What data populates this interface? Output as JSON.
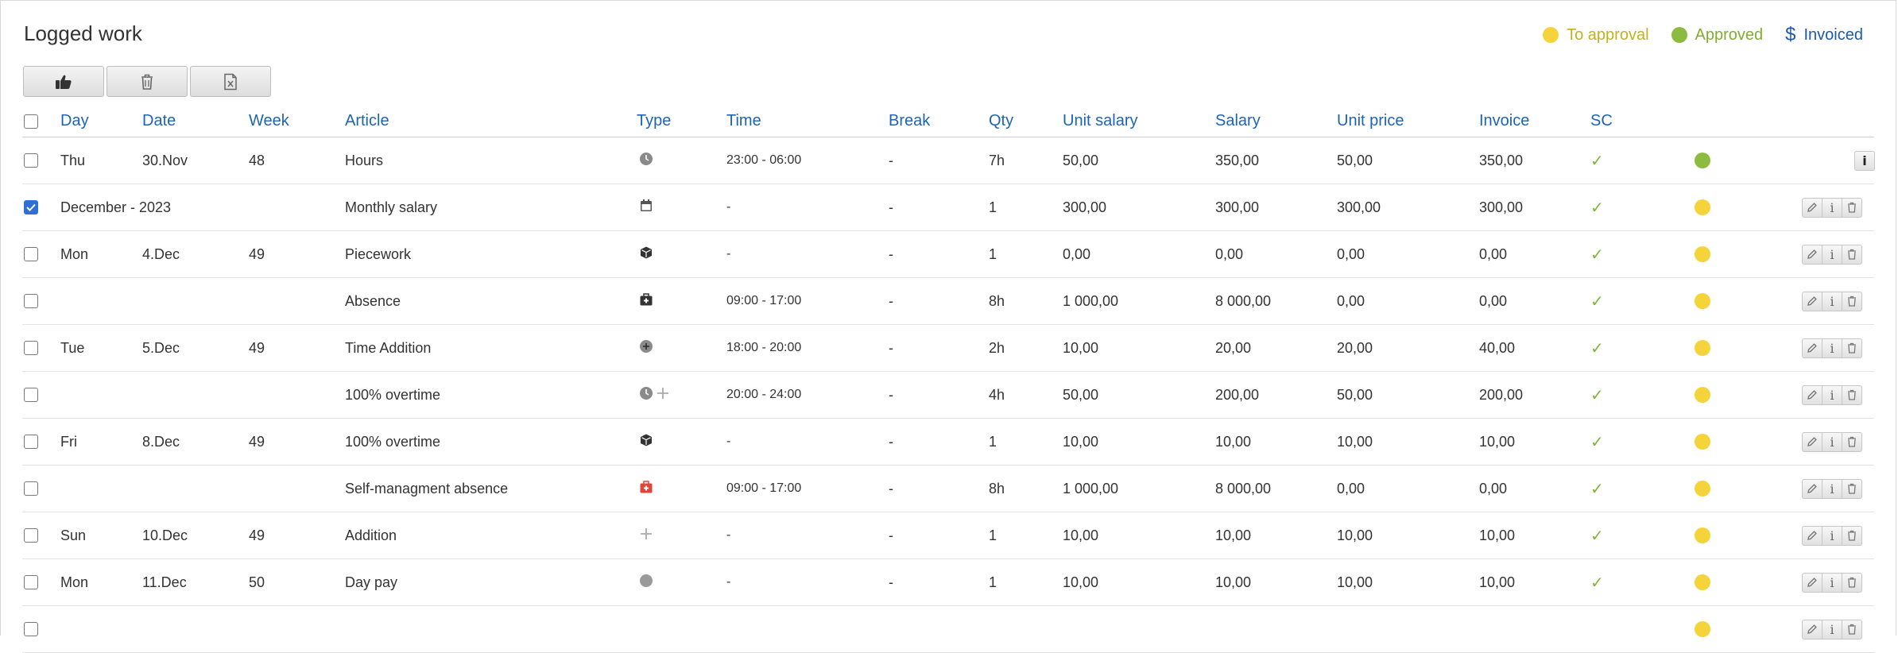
{
  "page": {
    "title": "Logged work"
  },
  "legend": [
    {
      "label": "To approval",
      "kind": "dot",
      "color": "#f5d33b",
      "text_color": "#c4b020"
    },
    {
      "label": "Approved",
      "kind": "dot",
      "color": "#8dbb3f",
      "text_color": "#7fae33"
    },
    {
      "label": "Invoiced",
      "kind": "dollar",
      "color": "#1e5aa8",
      "text_color": "#1e5aa8"
    }
  ],
  "toolbar": {
    "approve_icon": "thumbs-up-icon",
    "delete_icon": "trash-icon",
    "export_icon": "excel-file-icon"
  },
  "columns": {
    "day": "Day",
    "date": "Date",
    "week": "Week",
    "article": "Article",
    "type": "Type",
    "time": "Time",
    "break": "Break",
    "qty": "Qty",
    "unit_salary": "Unit salary",
    "salary": "Salary",
    "unit_price": "Unit price",
    "invoice": "Invoice",
    "sc": "SC"
  },
  "colors": {
    "to_approval": "#f5d33b",
    "approved": "#8dbb3f",
    "check": "#7fb539",
    "link": "#1e64b4"
  },
  "rows": [
    {
      "checked": false,
      "day": "Thu",
      "date": "30.Nov",
      "week": "48",
      "article": "Hours",
      "type_icon": "clock-icon",
      "time": "23:00 - 06:00",
      "break": "-",
      "qty": "7h",
      "unit_salary": "50,00",
      "salary": "350,00",
      "unit_price": "50,00",
      "invoice": "350,00",
      "sc": "✓",
      "status": "approved",
      "actions": "info"
    },
    {
      "checked": true,
      "day": "December - 2023",
      "date": "",
      "week": "",
      "article": "Monthly salary",
      "type_icon": "calendar-icon",
      "time": "-",
      "break": "-",
      "qty": "1",
      "unit_salary": "300,00",
      "salary": "300,00",
      "unit_price": "300,00",
      "invoice": "300,00",
      "sc": "✓",
      "status": "to_approval",
      "actions": "full"
    },
    {
      "checked": false,
      "day": "Mon",
      "date": "4.Dec",
      "week": "49",
      "article": "Piecework",
      "type_icon": "cube-icon",
      "time": "-",
      "break": "-",
      "qty": "1",
      "unit_salary": "0,00",
      "salary": "0,00",
      "unit_price": "0,00",
      "invoice": "0,00",
      "sc": "✓",
      "status": "to_approval",
      "actions": "full"
    },
    {
      "checked": false,
      "day": "",
      "date": "",
      "week": "",
      "article": "Absence",
      "type_icon": "medkit-icon",
      "time": "09:00 - 17:00",
      "break": "-",
      "qty": "8h",
      "unit_salary": "1 000,00",
      "salary": "8 000,00",
      "unit_price": "0,00",
      "invoice": "0,00",
      "sc": "✓",
      "status": "to_approval",
      "actions": "full"
    },
    {
      "checked": false,
      "day": "Tue",
      "date": "5.Dec",
      "week": "49",
      "article": "Time Addition",
      "type_icon": "plus-circle-icon",
      "time": "18:00 - 20:00",
      "break": "-",
      "qty": "2h",
      "unit_salary": "10,00",
      "salary": "20,00",
      "unit_price": "20,00",
      "invoice": "40,00",
      "sc": "✓",
      "status": "to_approval",
      "actions": "full"
    },
    {
      "checked": false,
      "day": "",
      "date": "",
      "week": "",
      "article": "100% overtime",
      "type_icon": "clock-plus-icon",
      "time": "20:00 - 24:00",
      "break": "-",
      "qty": "4h",
      "unit_salary": "50,00",
      "salary": "200,00",
      "unit_price": "50,00",
      "invoice": "200,00",
      "sc": "✓",
      "status": "to_approval",
      "actions": "full"
    },
    {
      "checked": false,
      "day": "Fri",
      "date": "8.Dec",
      "week": "49",
      "article": "100% overtime",
      "type_icon": "cube-icon",
      "time": "-",
      "break": "-",
      "qty": "1",
      "unit_salary": "10,00",
      "salary": "10,00",
      "unit_price": "10,00",
      "invoice": "10,00",
      "sc": "✓",
      "status": "to_approval",
      "actions": "full"
    },
    {
      "checked": false,
      "day": "",
      "date": "",
      "week": "",
      "article": "Self-managment absence",
      "type_icon": "medkit-red-icon",
      "time": "09:00 - 17:00",
      "break": "-",
      "qty": "8h",
      "unit_salary": "1 000,00",
      "salary": "8 000,00",
      "unit_price": "0,00",
      "invoice": "0,00",
      "sc": "✓",
      "status": "to_approval",
      "actions": "full"
    },
    {
      "checked": false,
      "day": "Sun",
      "date": "10.Dec",
      "week": "49",
      "article": "Addition",
      "type_icon": "plus-icon",
      "time": "-",
      "break": "-",
      "qty": "1",
      "unit_salary": "10,00",
      "salary": "10,00",
      "unit_price": "10,00",
      "invoice": "10,00",
      "sc": "✓",
      "status": "to_approval",
      "actions": "full"
    },
    {
      "checked": false,
      "day": "Mon",
      "date": "11.Dec",
      "week": "50",
      "article": "Day pay",
      "type_icon": "circle-icon",
      "time": "-",
      "break": "-",
      "qty": "1",
      "unit_salary": "10,00",
      "salary": "10,00",
      "unit_price": "10,00",
      "invoice": "10,00",
      "sc": "✓",
      "status": "to_approval",
      "actions": "full"
    },
    {
      "checked": false,
      "day": "",
      "date": "",
      "week": "",
      "article": "",
      "type_icon": "",
      "time": "",
      "break": "",
      "qty": "",
      "unit_salary": "",
      "salary": "",
      "unit_price": "",
      "invoice": "",
      "sc": "",
      "status": "to_approval",
      "actions": "full"
    }
  ]
}
